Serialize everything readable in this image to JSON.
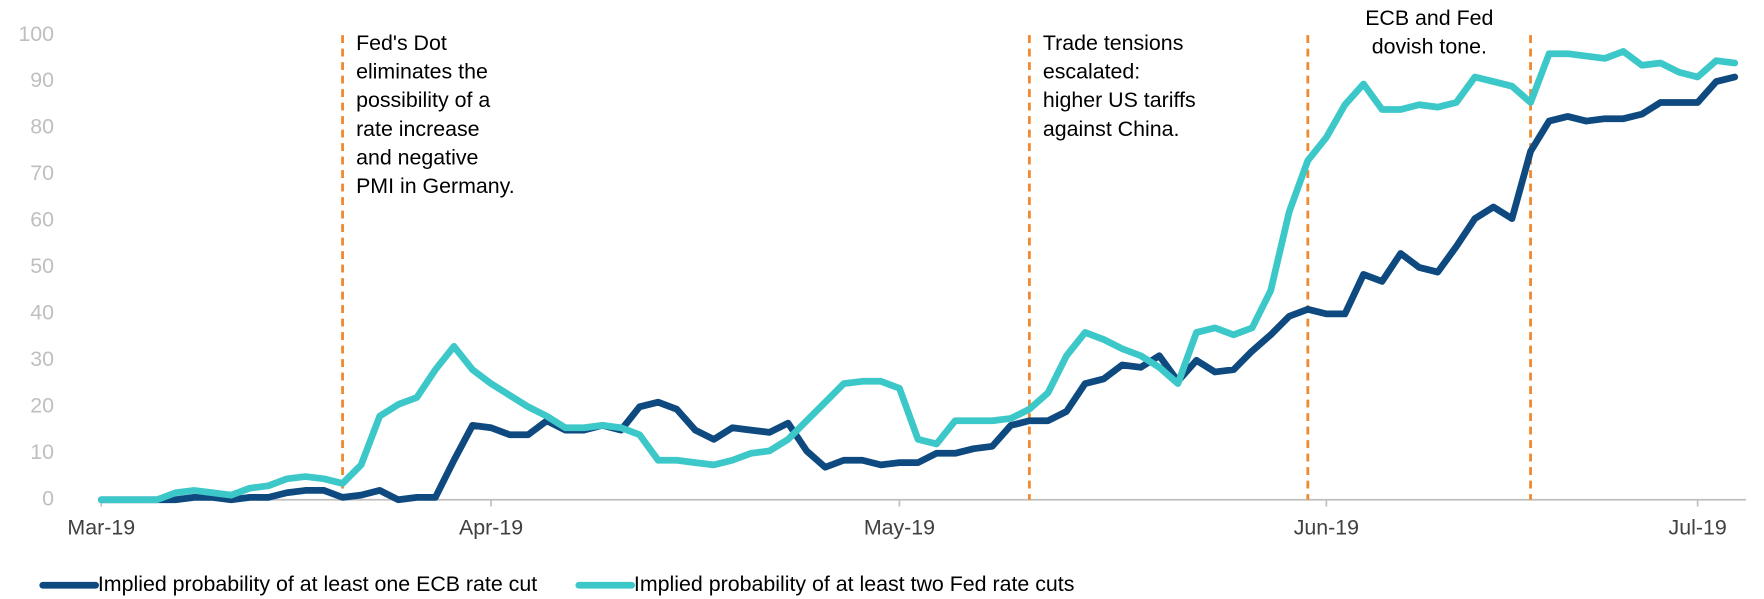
{
  "chart_data": {
    "type": "line",
    "categories": [
      "Mar-19",
      null,
      null,
      null,
      null,
      null,
      null,
      null,
      null,
      null,
      null,
      null,
      null,
      null,
      null,
      null,
      null,
      null,
      null,
      null,
      null,
      "Apr-19",
      null,
      null,
      null,
      null,
      null,
      null,
      null,
      null,
      null,
      null,
      null,
      null,
      null,
      null,
      null,
      null,
      null,
      null,
      null,
      null,
      null,
      "May-19",
      null,
      null,
      null,
      null,
      null,
      null,
      null,
      null,
      null,
      null,
      null,
      null,
      null,
      null,
      null,
      null,
      null,
      null,
      null,
      null,
      null,
      null,
      "Jun-19",
      null,
      null,
      null,
      null,
      null,
      null,
      null,
      null,
      null,
      null,
      null,
      null,
      null,
      null,
      null,
      null,
      null,
      null,
      null,
      "Jul-19",
      null,
      null
    ],
    "series": [
      {
        "name": "Implied probability of at least one ECB rate cut",
        "color": "#0e4a7f",
        "values": [
          0,
          0,
          0,
          0,
          0,
          0.5,
          0.5,
          0,
          0.5,
          0.5,
          1.5,
          2,
          2,
          0.5,
          1,
          2,
          0,
          0.5,
          0.5,
          8.5,
          16,
          15.5,
          14,
          14,
          17,
          15,
          15,
          16,
          15,
          20,
          21,
          19.5,
          15,
          13,
          15.5,
          15,
          14.5,
          16.5,
          10.5,
          7,
          8.5,
          8.5,
          7.5,
          8,
          8,
          10,
          10,
          11,
          11.5,
          16,
          17,
          17,
          19,
          25,
          26,
          29,
          28.5,
          31,
          25.5,
          30,
          27.5,
          28,
          32,
          35.5,
          39.5,
          41,
          40,
          40,
          48.5,
          47,
          53,
          50,
          49,
          54.5,
          60.5,
          63,
          60.5,
          75,
          81.5,
          82.5,
          81.5,
          82,
          82,
          83,
          85.5,
          85.5,
          85.5,
          90,
          91
        ]
      },
      {
        "name": "Implied probability of at least two Fed rate cuts",
        "color": "#3cc8c8",
        "values": [
          0,
          0,
          0,
          0,
          1.5,
          2,
          1.5,
          1,
          2.5,
          3,
          4.5,
          5,
          4.5,
          3.5,
          7.5,
          18,
          20.5,
          22,
          28,
          33,
          28,
          25,
          22.5,
          20,
          18,
          15.5,
          15.5,
          16,
          15.5,
          14,
          8.5,
          8.5,
          8,
          7.5,
          8.5,
          10,
          10.5,
          13,
          17,
          21,
          25,
          25.5,
          25.5,
          24,
          13,
          12,
          17,
          17,
          17,
          17.5,
          19.5,
          23,
          31,
          36,
          34.5,
          32.5,
          31,
          28.5,
          25,
          36,
          37,
          35.5,
          37,
          45,
          62,
          73,
          78,
          85,
          89.5,
          84,
          84,
          85,
          84.5,
          85.5,
          91,
          90,
          89,
          85.5,
          96,
          96,
          95.5,
          95,
          96.5,
          93.5,
          94,
          92,
          91,
          94.5,
          94
        ]
      }
    ],
    "ylim": [
      0,
      100
    ],
    "yticks": [
      0,
      10,
      20,
      30,
      40,
      50,
      60,
      70,
      80,
      90,
      100
    ],
    "annotations": [
      {
        "x": 13,
        "lines": [
          "Fed's Dot",
          "eliminates the",
          "possibility of a",
          "rate increase",
          "and negative",
          "PMI in Germany."
        ]
      },
      {
        "x": 50,
        "lines": [
          "Trade tensions",
          "escalated:",
          "higher US tariffs",
          "against China."
        ]
      },
      {
        "x": 65,
        "lines": []
      },
      {
        "x": 77,
        "lines": [
          "ECB and Fed",
          "dovish tone."
        ]
      }
    ],
    "annotation_color": "#f08a30"
  }
}
